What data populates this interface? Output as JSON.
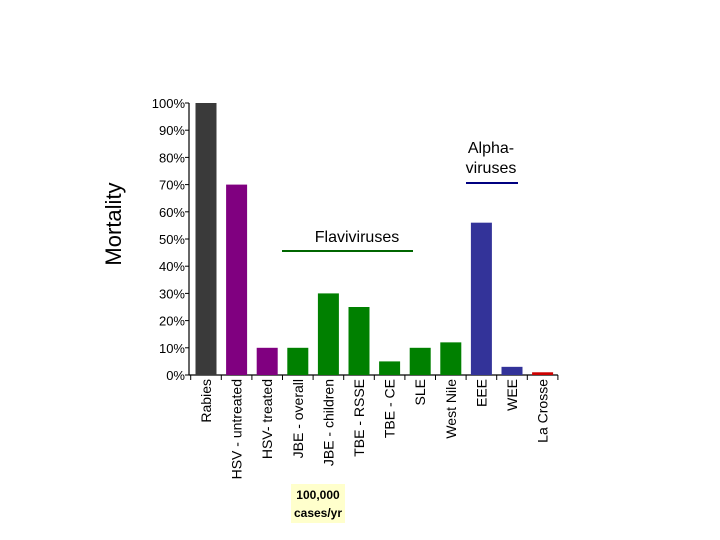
{
  "chart_data": {
    "type": "bar",
    "ylabel": "Mortality",
    "ylim": [
      0,
      100
    ],
    "yticks": [
      "0%",
      "10%",
      "20%",
      "30%",
      "40%",
      "50%",
      "60%",
      "70%",
      "80%",
      "90%",
      "100%"
    ],
    "grid": false,
    "categories": [
      "Rabies",
      "HSV - untreated",
      "HSV- treated",
      "JBE - overall",
      "JBE - children",
      "TBE - RSSE",
      "TBE - CE",
      "SLE",
      "West Nile",
      "EEE",
      "WEE",
      "La Crosse"
    ],
    "values": [
      100,
      70,
      10,
      10,
      30,
      25,
      5,
      10,
      12,
      56,
      3,
      1
    ],
    "bar_colors": [
      "#3a3a3a",
      "#800080",
      "#800080",
      "#008000",
      "#008000",
      "#008000",
      "#008000",
      "#008000",
      "#008000",
      "#333399",
      "#333399",
      "#cc0000"
    ],
    "annotations": [
      {
        "text": "Flaviviruses",
        "color": "#006600"
      },
      {
        "text_lines": [
          "Alpha-",
          "viruses"
        ],
        "color": "#000080"
      }
    ],
    "note": {
      "lines": [
        "100,000",
        "cases/yr"
      ],
      "background": "#ffffcc"
    }
  }
}
